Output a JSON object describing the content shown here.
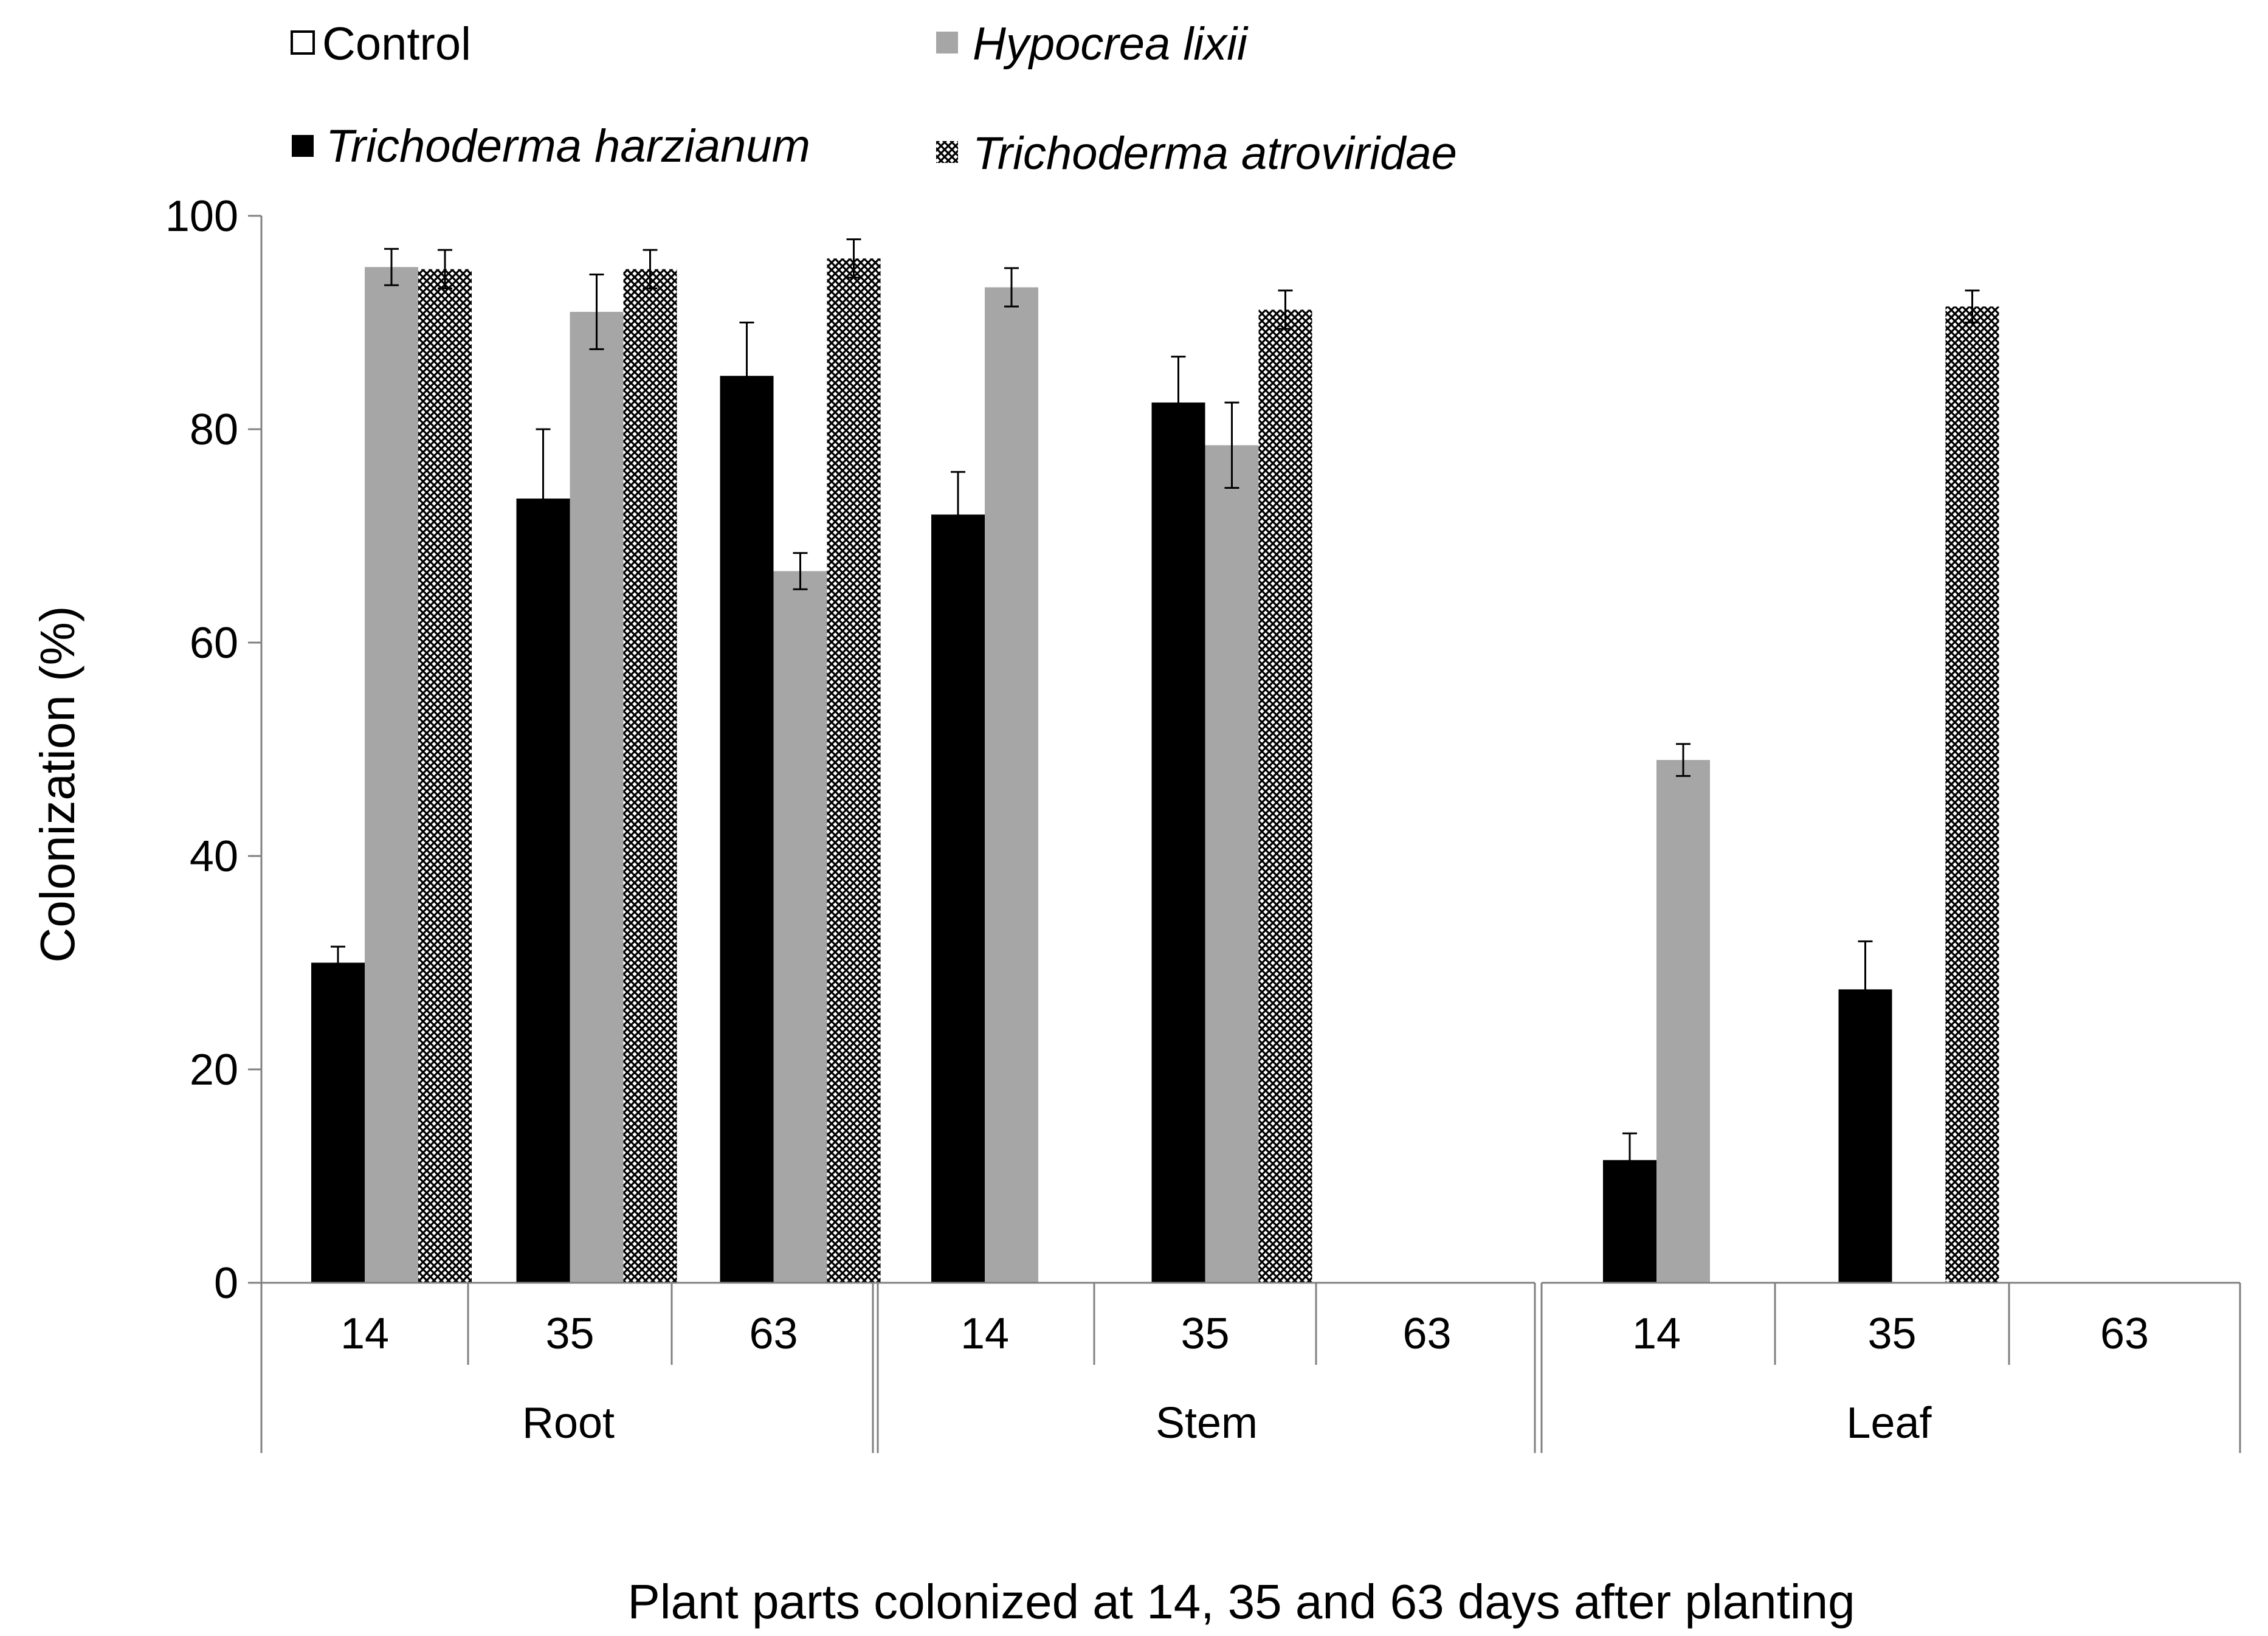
{
  "chart_data": {
    "type": "bar",
    "title": "",
    "xlabel": "Plant parts colonized at 14, 35 and 63 days after planting",
    "ylabel": "Colonization (%)",
    "ylim": [
      0,
      100
    ],
    "yticks": [
      "0",
      "20",
      "40",
      "60",
      "80",
      "100"
    ],
    "groups": [
      {
        "label": "Root",
        "days": [
          "14",
          "35",
          "63"
        ]
      },
      {
        "label": "Stem",
        "days": [
          "14",
          "35",
          "63"
        ]
      },
      {
        "label": "Leaf",
        "days": [
          "14",
          "35",
          "63"
        ]
      }
    ],
    "categories": [
      "Root 14",
      "Root 35",
      "Root 63",
      "Stem 14",
      "Stem 35",
      "Stem 63",
      "Leaf 14",
      "Leaf 35",
      "Leaf 63"
    ],
    "series": [
      {
        "name": "Control",
        "italic": false,
        "fill": "white",
        "values": [
          0,
          0,
          0,
          0,
          0,
          0,
          0,
          0,
          0
        ],
        "errors": [
          0,
          0,
          0,
          0,
          0,
          0,
          0,
          0,
          0
        ]
      },
      {
        "name": "Trichoderma harzianum",
        "italic": true,
        "fill": "black",
        "values": [
          30,
          73.5,
          85,
          72,
          82.5,
          0,
          11.5,
          27.5,
          0
        ],
        "errors": [
          1.5,
          6.5,
          5,
          4,
          4.3,
          0,
          2.5,
          4.5,
          0
        ]
      },
      {
        "name": "Hypocrea lixii",
        "italic": true,
        "fill": "gray",
        "values": [
          95.2,
          91,
          66.7,
          93.3,
          78.5,
          0,
          49,
          0,
          0
        ],
        "errors": [
          1.7,
          3.5,
          1.7,
          1.8,
          4,
          0,
          1.5,
          0,
          0
        ]
      },
      {
        "name": "Trichoderma atroviridae",
        "italic": true,
        "fill": "crosshatch",
        "values": [
          95,
          95,
          96,
          0,
          91.2,
          0,
          0,
          91.5,
          0
        ],
        "errors": [
          1.8,
          1.8,
          1.8,
          0,
          1.8,
          0,
          0,
          1.5,
          0
        ]
      }
    ],
    "legend_position": "top",
    "colors": {
      "black": "#000000",
      "gray": "#a6a6a6",
      "white": "#ffffff",
      "axis": "#808080"
    }
  }
}
